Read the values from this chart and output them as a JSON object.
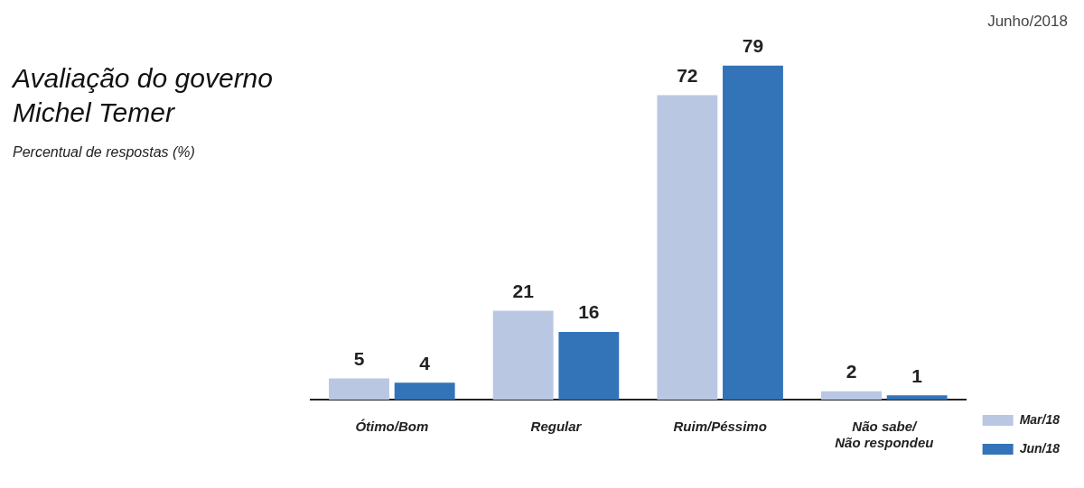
{
  "chart_data": {
    "type": "bar",
    "title": "Avaliação do governo Michel Temer",
    "subtitle": "Percentual de respostas (%)",
    "annotations": [
      "Junho/2018"
    ],
    "categories": [
      "Ótimo/Bom",
      "Regular",
      "Ruim/Péssimo",
      "Não sabe/\nNão respondeu"
    ],
    "series": [
      {
        "name": "Mar/18",
        "color": "#b9c7e3",
        "values": [
          5,
          21,
          72,
          2
        ]
      },
      {
        "name": "Jun/18",
        "color": "#3373b8",
        "values": [
          4,
          16,
          79,
          1
        ]
      }
    ],
    "data_labels": true,
    "grid": false,
    "legend": "right"
  }
}
